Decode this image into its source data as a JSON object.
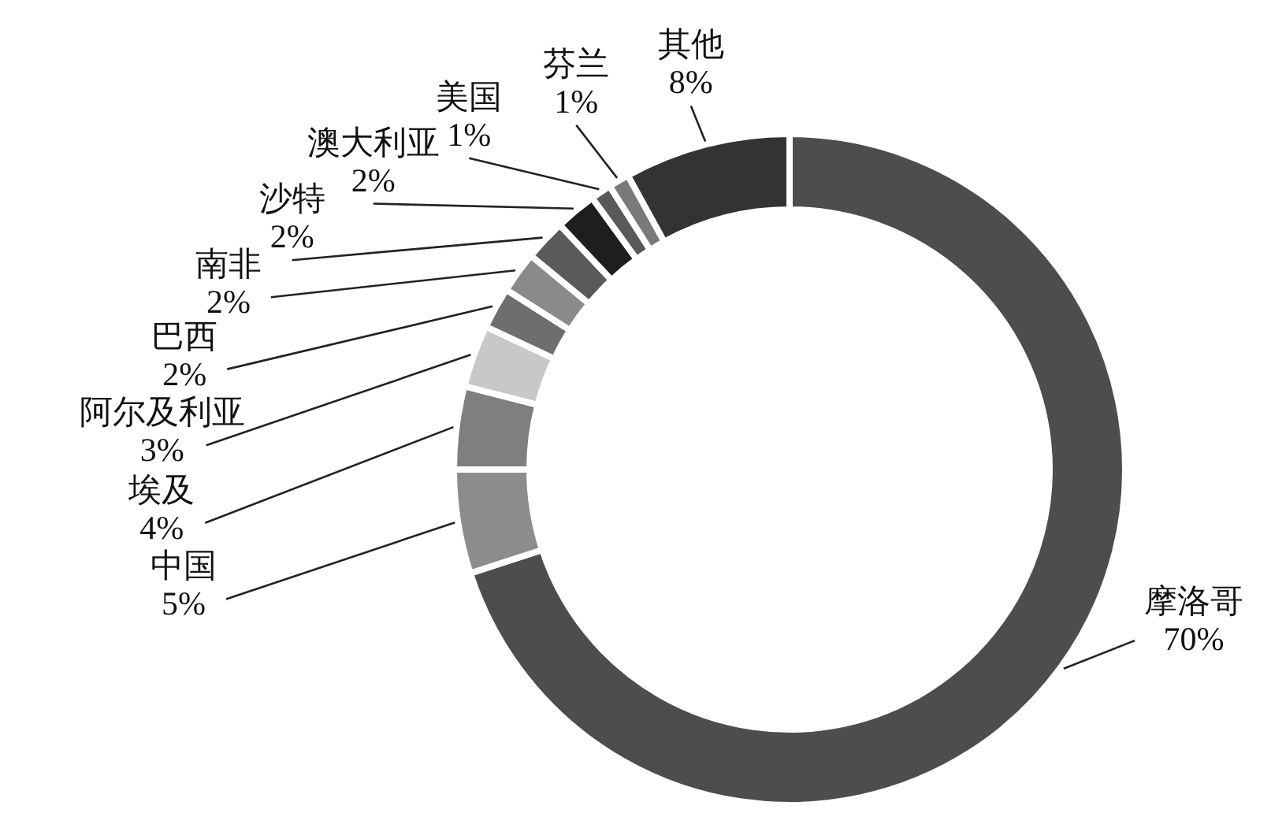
{
  "chart_data": {
    "type": "donut",
    "categories": [
      "摩洛哥",
      "中国",
      "埃及",
      "阿尔及利亚",
      "巴西",
      "南非",
      "沙特",
      "澳大利亚",
      "美国",
      "芬兰",
      "其他"
    ],
    "values": [
      70,
      5,
      4,
      3,
      2,
      2,
      2,
      2,
      1,
      1,
      8
    ],
    "colors": [
      "#4d4d4d",
      "#8c8c8c",
      "#7f7f7f",
      "#c8c8c8",
      "#6e6e6e",
      "#8a8a8a",
      "#5a5a5a",
      "#1e1e1e",
      "#595959",
      "#7a7a7a",
      "#333333"
    ],
    "value_labels": [
      "70%",
      "5%",
      "4%",
      "3%",
      "2%",
      "2%",
      "2%",
      "2%",
      "1%",
      "1%",
      "8%"
    ]
  }
}
